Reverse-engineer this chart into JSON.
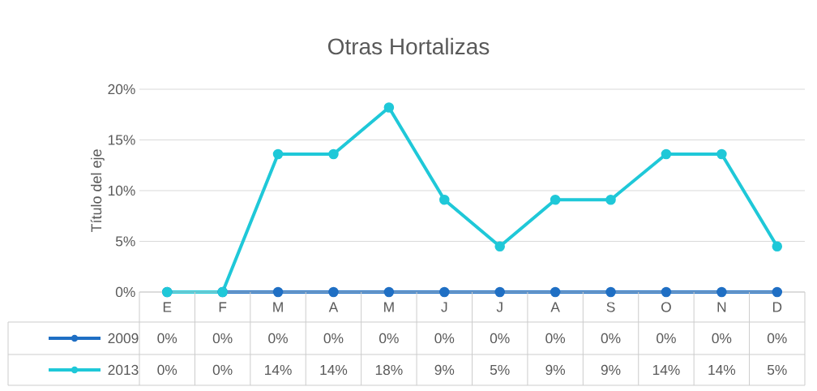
{
  "chart_data": {
    "type": "line",
    "title": "Otras Hortalizas",
    "ylabel": "Título del eje",
    "categories": [
      "E",
      "F",
      "M",
      "A",
      "M",
      "J",
      "J",
      "A",
      "S",
      "O",
      "N",
      "D"
    ],
    "series": [
      {
        "name": "2009",
        "color": "#1f6fc4",
        "values": [
          0,
          0,
          0,
          0,
          0,
          0,
          0,
          0,
          0,
          0,
          0,
          0
        ],
        "value_labels": [
          "0%",
          "0%",
          "0%",
          "0%",
          "0%",
          "0%",
          "0%",
          "0%",
          "0%",
          "0%",
          "0%",
          "0%"
        ]
      },
      {
        "name": "2013",
        "color": "#1fc8d8",
        "values": [
          0,
          0,
          13.6,
          13.6,
          18.2,
          9.1,
          4.5,
          9.1,
          9.1,
          13.6,
          13.6,
          4.5
        ],
        "value_labels": [
          "0%",
          "0%",
          "14%",
          "14%",
          "18%",
          "9%",
          "5%",
          "9%",
          "9%",
          "14%",
          "14%",
          "5%"
        ]
      }
    ],
    "ylim": [
      0,
      20
    ],
    "yticks": [
      {
        "value": 0,
        "label": "0%"
      },
      {
        "value": 5,
        "label": "5%"
      },
      {
        "value": 10,
        "label": "10%"
      },
      {
        "value": 15,
        "label": "15%"
      },
      {
        "value": 20,
        "label": "20%"
      }
    ],
    "grid": "y",
    "legend": "bottom",
    "marker": "circle",
    "line_style": "solid"
  }
}
